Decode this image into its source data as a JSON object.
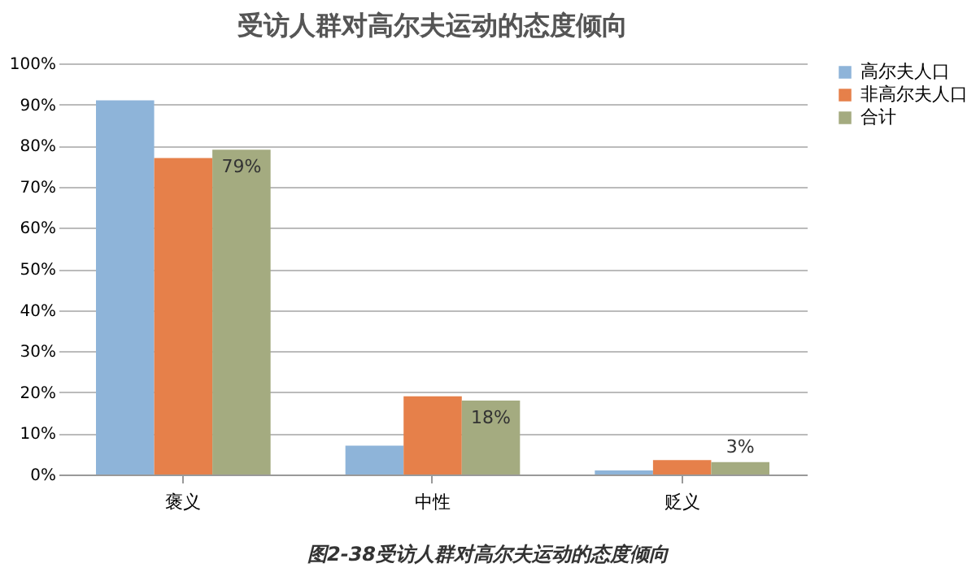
{
  "chart_data": {
    "type": "bar",
    "title": "受访人群对高尔夫运动的态度倾向",
    "categories": [
      "褒义",
      "中性",
      "贬义"
    ],
    "series": [
      {
        "name": "高尔夫人口",
        "color": "#8eb4d9",
        "values": [
          91,
          7,
          1
        ]
      },
      {
        "name": "非高尔夫人口",
        "color": "#e6804a",
        "values": [
          77,
          19,
          3.5
        ]
      },
      {
        "name": "合计",
        "color": "#a4ab80",
        "values": [
          79,
          18,
          3
        ],
        "value_labels": [
          "79%",
          "18%",
          "3%"
        ]
      }
    ],
    "ylim": [
      0,
      100
    ],
    "yticks": [
      {
        "value": 0,
        "label": "0%"
      },
      {
        "value": 10,
        "label": "10%"
      },
      {
        "value": 20,
        "label": "20%"
      },
      {
        "value": 30,
        "label": "30%"
      },
      {
        "value": 40,
        "label": "40%"
      },
      {
        "value": 50,
        "label": "50%"
      },
      {
        "value": 60,
        "label": "60%"
      },
      {
        "value": 70,
        "label": "70%"
      },
      {
        "value": 80,
        "label": "80%"
      },
      {
        "value": 90,
        "label": "90%"
      },
      {
        "value": 100,
        "label": "100%"
      }
    ],
    "grid": "y",
    "legend": "right",
    "annotations": [
      "图2-38受访人群对高尔夫运动的态度倾向"
    ]
  }
}
